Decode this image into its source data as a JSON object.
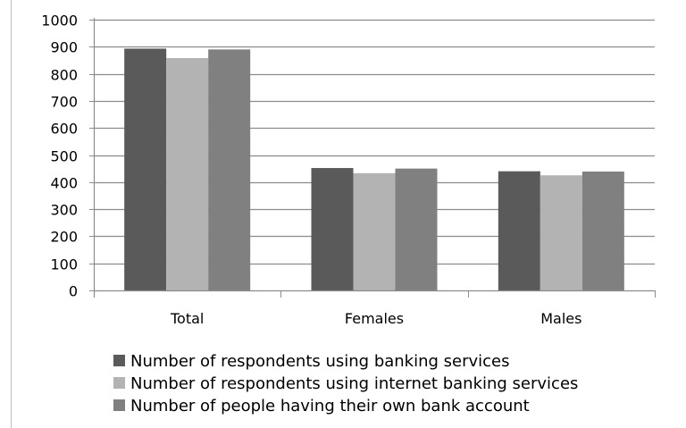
{
  "chart_data": {
    "type": "bar",
    "categories": [
      "Total",
      "Females",
      "Males"
    ],
    "series": [
      {
        "name": "Number of respondents using banking services",
        "color": "#5a5a5a",
        "values": [
          893,
          452,
          440
        ]
      },
      {
        "name": "Number of respondents using internet banking services",
        "color": "#b3b3b3",
        "values": [
          858,
          433,
          425
        ]
      },
      {
        "name": "Number of people having their own bank account",
        "color": "#808080",
        "values": [
          890,
          450,
          439
        ]
      }
    ],
    "ylim": [
      0,
      1000
    ],
    "yticks": [
      "0",
      "100",
      "200",
      "300",
      "400",
      "500",
      "600",
      "700",
      "800",
      "900",
      "1000"
    ],
    "grid": true,
    "legend_position": "bottom-left"
  }
}
